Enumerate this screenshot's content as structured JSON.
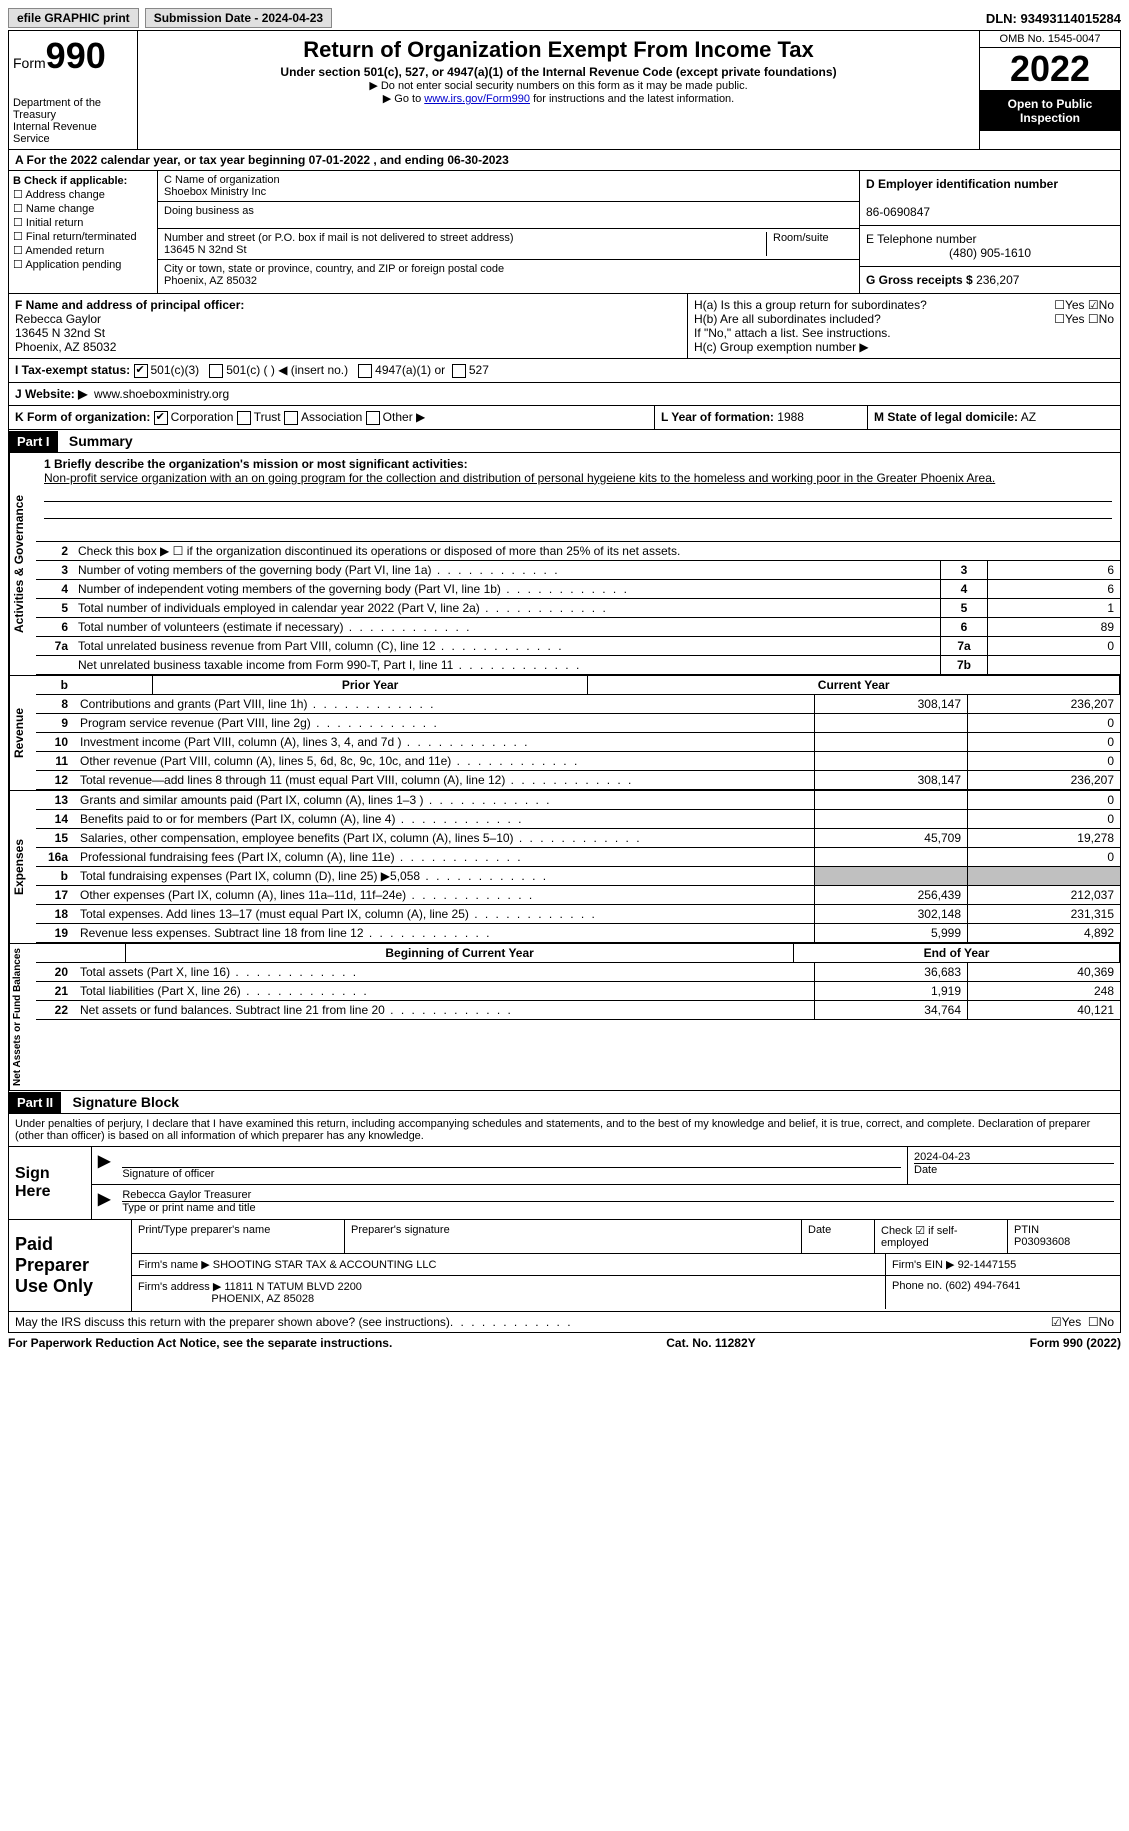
{
  "top": {
    "efile_label": "efile GRAPHIC print",
    "submission_label": "Submission Date - 2024-04-23",
    "dln": "DLN: 93493114015284"
  },
  "header": {
    "form_label": "Form",
    "form_number": "990",
    "dept": "Department of the Treasury",
    "irs": "Internal Revenue Service",
    "title": "Return of Organization Exempt From Income Tax",
    "subtitle": "Under section 501(c), 527, or 4947(a)(1) of the Internal Revenue Code (except private foundations)",
    "note1": "▶ Do not enter social security numbers on this form as it may be made public.",
    "note2_pre": "▶ Go to ",
    "note2_link": "www.irs.gov/Form990",
    "note2_post": " for instructions and the latest information.",
    "omb": "OMB No. 1545-0047",
    "year": "2022",
    "open_public": "Open to Public Inspection"
  },
  "period": {
    "line": "A For the 2022 calendar year, or tax year beginning 07-01-2022    , and ending 06-30-2023"
  },
  "boxB": {
    "label": "B Check if applicable:",
    "items": [
      "Address change",
      "Name change",
      "Initial return",
      "Final return/terminated",
      "Amended return",
      "Application pending"
    ]
  },
  "boxC": {
    "name_label": "C Name of organization",
    "name": "Shoebox Ministry Inc",
    "dba_label": "Doing business as",
    "addr_label": "Number and street (or P.O. box if mail is not delivered to street address)",
    "room_label": "Room/suite",
    "addr": "13645 N 32nd St",
    "city_label": "City or town, state or province, country, and ZIP or foreign postal code",
    "city": "Phoenix, AZ  85032"
  },
  "boxD": {
    "label": "D Employer identification number",
    "value": "86-0690847"
  },
  "boxE": {
    "label": "E Telephone number",
    "value": "(480) 905-1610"
  },
  "boxG": {
    "label": "G Gross receipts $",
    "value": "236,207"
  },
  "boxF": {
    "label": "F Name and address of principal officer:",
    "name": "Rebecca Gaylor",
    "addr1": "13645 N 32nd St",
    "addr2": "Phoenix, AZ  85032"
  },
  "boxH": {
    "a_label": "H(a)  Is this a group return for subordinates?",
    "a_yes": "Yes",
    "a_no": "No",
    "b_label": "H(b)  Are all subordinates included?",
    "b_note": "If \"No,\" attach a list. See instructions.",
    "c_label": "H(c)  Group exemption number ▶"
  },
  "boxI": {
    "label": "I    Tax-exempt status:",
    "opt1": "501(c)(3)",
    "opt2": "501(c) (   ) ◀ (insert no.)",
    "opt3": "4947(a)(1) or",
    "opt4": "527"
  },
  "boxJ": {
    "label": "J   Website: ▶",
    "value": "www.shoeboxministry.org"
  },
  "boxK": {
    "label": "K Form of organization:",
    "opts": [
      "Corporation",
      "Trust",
      "Association",
      "Other ▶"
    ]
  },
  "boxL": {
    "label": "L Year of formation:",
    "value": "1988"
  },
  "boxM": {
    "label": "M State of legal domicile:",
    "value": "AZ"
  },
  "part1": {
    "header": "Part I",
    "title": "Summary",
    "mission_label": "1  Briefly describe the organization's mission or most significant activities:",
    "mission": "Non-profit service organization with an on going program for the collection and distribution of personal hygeiene kits to the homeless and working poor in the Greater Phoenix Area.",
    "line2": "Check this box ▶ ☐  if the organization discontinued its operations or disposed of more than 25% of its net assets.",
    "rows_gov": [
      {
        "n": "3",
        "desc": "Number of voting members of the governing body (Part VI, line 1a)",
        "box": "3",
        "val": "6"
      },
      {
        "n": "4",
        "desc": "Number of independent voting members of the governing body (Part VI, line 1b)",
        "box": "4",
        "val": "6"
      },
      {
        "n": "5",
        "desc": "Total number of individuals employed in calendar year 2022 (Part V, line 2a)",
        "box": "5",
        "val": "1"
      },
      {
        "n": "6",
        "desc": "Total number of volunteers (estimate if necessary)",
        "box": "6",
        "val": "89"
      },
      {
        "n": "7a",
        "desc": "Total unrelated business revenue from Part VIII, column (C), line 12",
        "box": "7a",
        "val": "0"
      },
      {
        "n": "",
        "desc": "Net unrelated business taxable income from Form 990-T, Part I, line 11",
        "box": "7b",
        "val": ""
      }
    ],
    "col_prior": "Prior Year",
    "col_current": "Current Year",
    "rows_rev": [
      {
        "n": "8",
        "desc": "Contributions and grants (Part VIII, line 1h)",
        "prior": "308,147",
        "curr": "236,207"
      },
      {
        "n": "9",
        "desc": "Program service revenue (Part VIII, line 2g)",
        "prior": "",
        "curr": "0"
      },
      {
        "n": "10",
        "desc": "Investment income (Part VIII, column (A), lines 3, 4, and 7d )",
        "prior": "",
        "curr": "0"
      },
      {
        "n": "11",
        "desc": "Other revenue (Part VIII, column (A), lines 5, 6d, 8c, 9c, 10c, and 11e)",
        "prior": "",
        "curr": "0"
      },
      {
        "n": "12",
        "desc": "Total revenue—add lines 8 through 11 (must equal Part VIII, column (A), line 12)",
        "prior": "308,147",
        "curr": "236,207"
      }
    ],
    "rows_exp": [
      {
        "n": "13",
        "desc": "Grants and similar amounts paid (Part IX, column (A), lines 1–3 )",
        "prior": "",
        "curr": "0"
      },
      {
        "n": "14",
        "desc": "Benefits paid to or for members (Part IX, column (A), line 4)",
        "prior": "",
        "curr": "0"
      },
      {
        "n": "15",
        "desc": "Salaries, other compensation, employee benefits (Part IX, column (A), lines 5–10)",
        "prior": "45,709",
        "curr": "19,278"
      },
      {
        "n": "16a",
        "desc": "Professional fundraising fees (Part IX, column (A), line 11e)",
        "prior": "",
        "curr": "0"
      },
      {
        "n": "b",
        "desc": "Total fundraising expenses (Part IX, column (D), line 25) ▶5,058",
        "prior": "GREY",
        "curr": "GREY"
      },
      {
        "n": "17",
        "desc": "Other expenses (Part IX, column (A), lines 11a–11d, 11f–24e)",
        "prior": "256,439",
        "curr": "212,037"
      },
      {
        "n": "18",
        "desc": "Total expenses. Add lines 13–17 (must equal Part IX, column (A), line 25)",
        "prior": "302,148",
        "curr": "231,315"
      },
      {
        "n": "19",
        "desc": "Revenue less expenses. Subtract line 18 from line 12",
        "prior": "5,999",
        "curr": "4,892"
      }
    ],
    "col_begin": "Beginning of Current Year",
    "col_end": "End of Year",
    "rows_net": [
      {
        "n": "20",
        "desc": "Total assets (Part X, line 16)",
        "prior": "36,683",
        "curr": "40,369"
      },
      {
        "n": "21",
        "desc": "Total liabilities (Part X, line 26)",
        "prior": "1,919",
        "curr": "248"
      },
      {
        "n": "22",
        "desc": "Net assets or fund balances. Subtract line 21 from line 20",
        "prior": "34,764",
        "curr": "40,121"
      }
    ],
    "side_labels": {
      "gov": "Activities & Governance",
      "rev": "Revenue",
      "exp": "Expenses",
      "net": "Net Assets or Fund Balances"
    }
  },
  "part2": {
    "header": "Part II",
    "title": "Signature Block",
    "declaration": "Under penalties of perjury, I declare that I have examined this return, including accompanying schedules and statements, and to the best of my knowledge and belief, it is true, correct, and complete. Declaration of preparer (other than officer) is based on all information of which preparer has any knowledge.",
    "sign_here": "Sign Here",
    "sig_officer": "Signature of officer",
    "sig_date": "2024-04-23",
    "sig_date_label": "Date",
    "name_title": "Rebecca Gaylor Treasurer",
    "name_label": "Type or print name and title",
    "paid_prep": "Paid Preparer Use Only",
    "prep_name_label": "Print/Type preparer's name",
    "prep_sig_label": "Preparer's signature",
    "date_label": "Date",
    "check_self": "Check ☑ if self-employed",
    "ptin_label": "PTIN",
    "ptin": "P03093608",
    "firm_name_label": "Firm's name    ▶",
    "firm_name": "SHOOTING STAR TAX & ACCOUNTING LLC",
    "firm_ein_label": "Firm's EIN ▶",
    "firm_ein": "92-1447155",
    "firm_addr_label": "Firm's address ▶",
    "firm_addr1": "11811 N TATUM BLVD 2200",
    "firm_addr2": "PHOENIX, AZ  85028",
    "phone_label": "Phone no.",
    "phone": "(602) 494-7641",
    "discuss": "May the IRS discuss this return with the preparer shown above? (see instructions)",
    "yes": "Yes",
    "no": "No"
  },
  "footer": {
    "left": "For Paperwork Reduction Act Notice, see the separate instructions.",
    "mid": "Cat. No. 11282Y",
    "right": "Form 990 (2022)"
  }
}
